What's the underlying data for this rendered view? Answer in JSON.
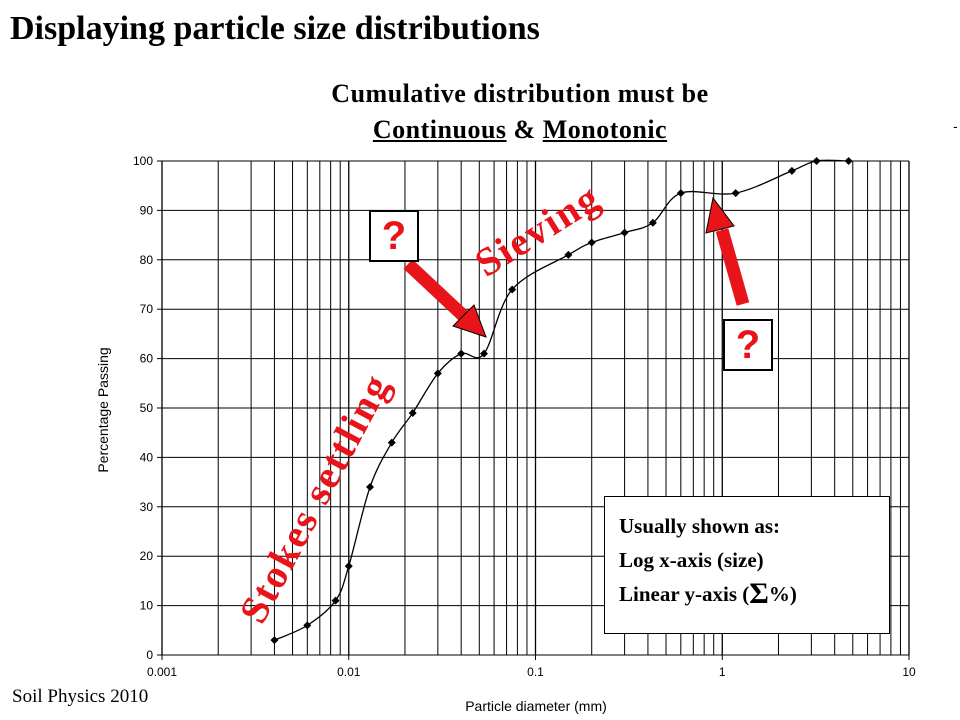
{
  "slide": {
    "title": "Displaying particle size distributions",
    "subtitle_line1": "Cumulative distribution must be",
    "subtitle_word1": "Continuous",
    "subtitle_amp": " & ",
    "subtitle_word2": "Monotonic",
    "footer": "Soil Physics 2010",
    "edge_mark": "-"
  },
  "annotations": {
    "sieving": "Sieving",
    "stokes": "Stokes settling",
    "question_mark": "?",
    "note_line1": "Usually shown as:",
    "note_line2": "Log x-axis (size)",
    "note_line3_prefix": "Linear y-axis (",
    "note_sigma": "Σ",
    "note_line3_suffix": "%)",
    "arrow_color": "#e8141a",
    "text_color": "#e8141a"
  },
  "chart_data": {
    "type": "line",
    "xlabel": "Particle diameter (mm)",
    "ylabel": "Percentage Passing",
    "x_scale": "log",
    "xlim": [
      0.001,
      10
    ],
    "ylim": [
      0,
      100
    ],
    "x_ticks": [
      "0.001",
      "0.01",
      "0.1",
      "1",
      "10"
    ],
    "y_ticks": [
      "0",
      "10",
      "20",
      "30",
      "40",
      "50",
      "60",
      "70",
      "80",
      "90",
      "100"
    ],
    "grid": true,
    "series": [
      {
        "x": [
          0.004,
          0.006,
          0.0085,
          0.01,
          0.013,
          0.017,
          0.022,
          0.03,
          0.04,
          0.053,
          0.075,
          0.15,
          0.2,
          0.3,
          0.425,
          0.6,
          1.18,
          2.36,
          3.2,
          4.75
        ],
        "y": [
          3,
          6,
          11,
          18,
          34,
          43,
          49,
          57,
          61,
          61,
          74,
          81,
          83.5,
          85.5,
          87.5,
          93.5,
          93.5,
          98,
          100,
          100
        ]
      }
    ]
  }
}
